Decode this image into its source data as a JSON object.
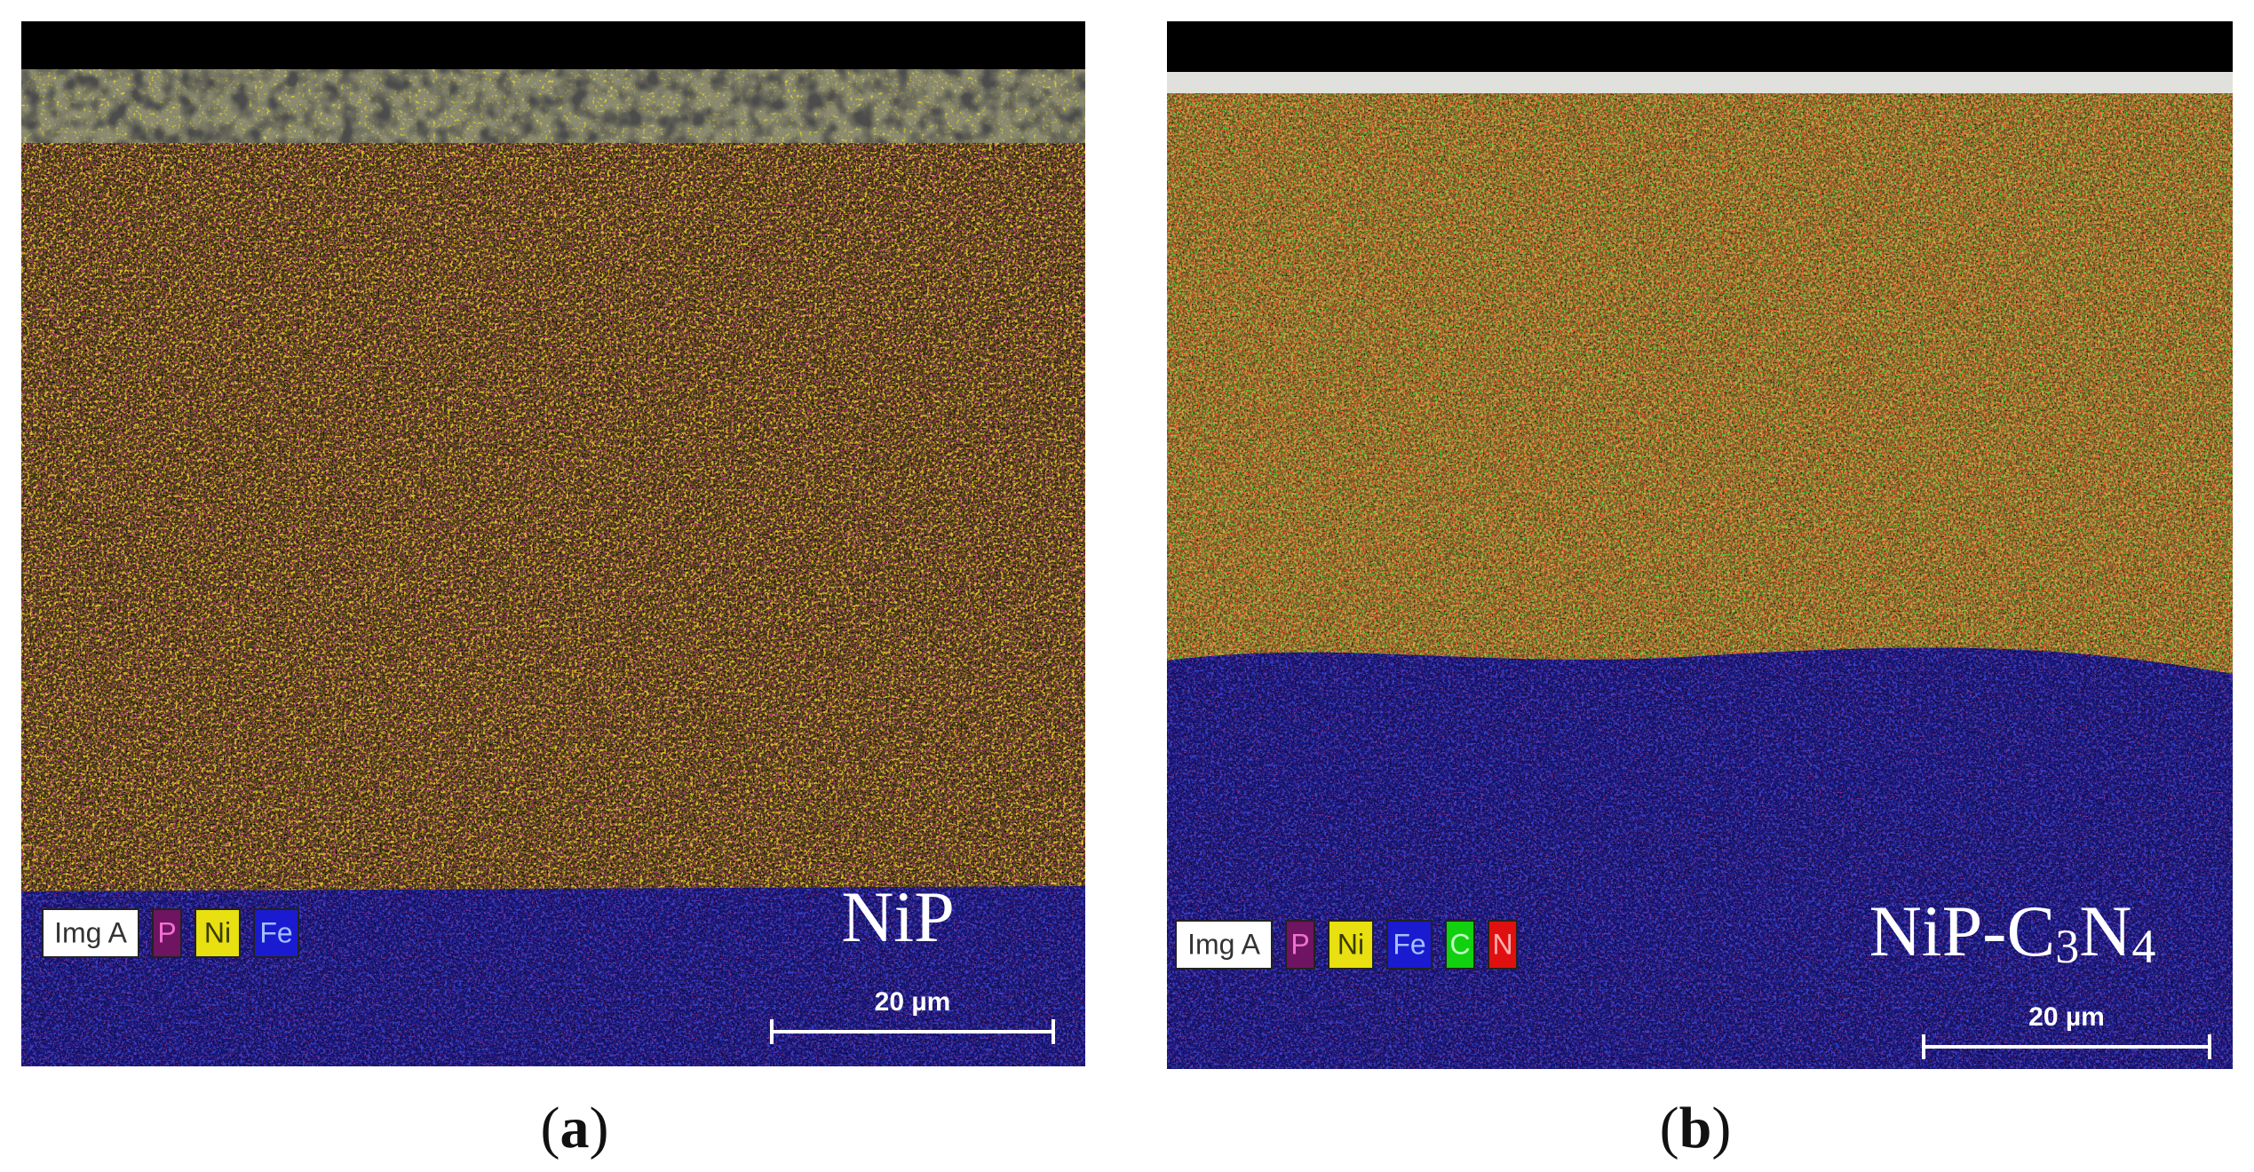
{
  "panels": [
    {
      "caption": {
        "open": "(",
        "letter": "a",
        "close": ")"
      },
      "legend": [
        {
          "text": "Img A",
          "background": "#ffffff",
          "color": "#333333"
        },
        {
          "text": "P",
          "background": "#6e1460",
          "color": "#f070d0"
        },
        {
          "text": "Ni",
          "background": "#e8e010",
          "color": "#3a3a00"
        },
        {
          "text": "Fe",
          "background": "#1a1ad0",
          "color": "#a0c0ff"
        }
      ],
      "sample_label": [
        {
          "text": "NiP"
        }
      ],
      "scale_bar": "20 µm"
    },
    {
      "caption": {
        "open": "(",
        "letter": "b",
        "close": ")"
      },
      "legend": [
        {
          "text": "Img A",
          "background": "#ffffff",
          "color": "#333333"
        },
        {
          "text": "P",
          "background": "#6e1460",
          "color": "#f070d0"
        },
        {
          "text": "Ni",
          "background": "#e8e010",
          "color": "#3a3a00"
        },
        {
          "text": "Fe",
          "background": "#1a1ad0",
          "color": "#a0c0ff"
        },
        {
          "text": "C",
          "background": "#10d010",
          "color": "#c0ffc0"
        },
        {
          "text": "N",
          "background": "#e01010",
          "color": "#ffb0b0"
        }
      ],
      "sample_label": [
        {
          "text": "NiP-C"
        },
        {
          "text": "3",
          "sub": true
        },
        {
          "text": "N"
        },
        {
          "text": "4",
          "sub": true
        }
      ],
      "scale_bar": "20 µm"
    }
  ]
}
